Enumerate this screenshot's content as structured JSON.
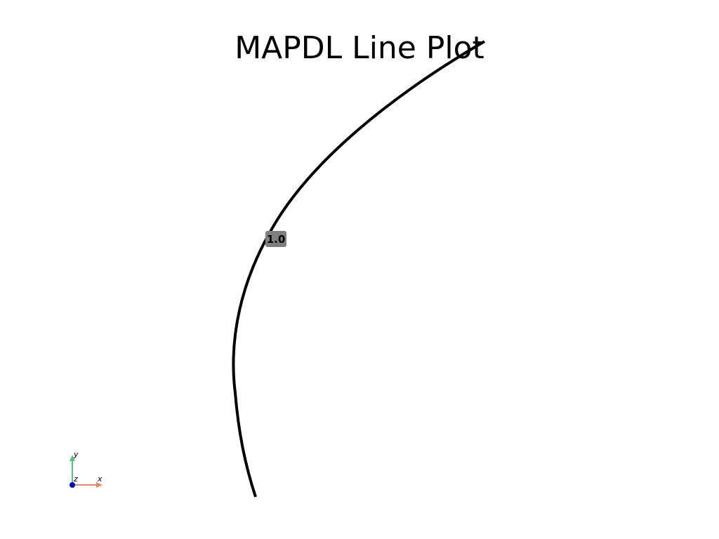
{
  "plot": {
    "title": "MAPDL Line Plot",
    "line_label": "1.0"
  },
  "colors": {
    "background": "#ffffff",
    "line": "#000000",
    "label_background": "#7f7f7f",
    "axis_x": "#f4845f",
    "axis_y": "#50c878",
    "axis_z": "#0000cc"
  },
  "axes_widget": {
    "x_label": "x",
    "y_label": "y",
    "z_label": "z"
  }
}
